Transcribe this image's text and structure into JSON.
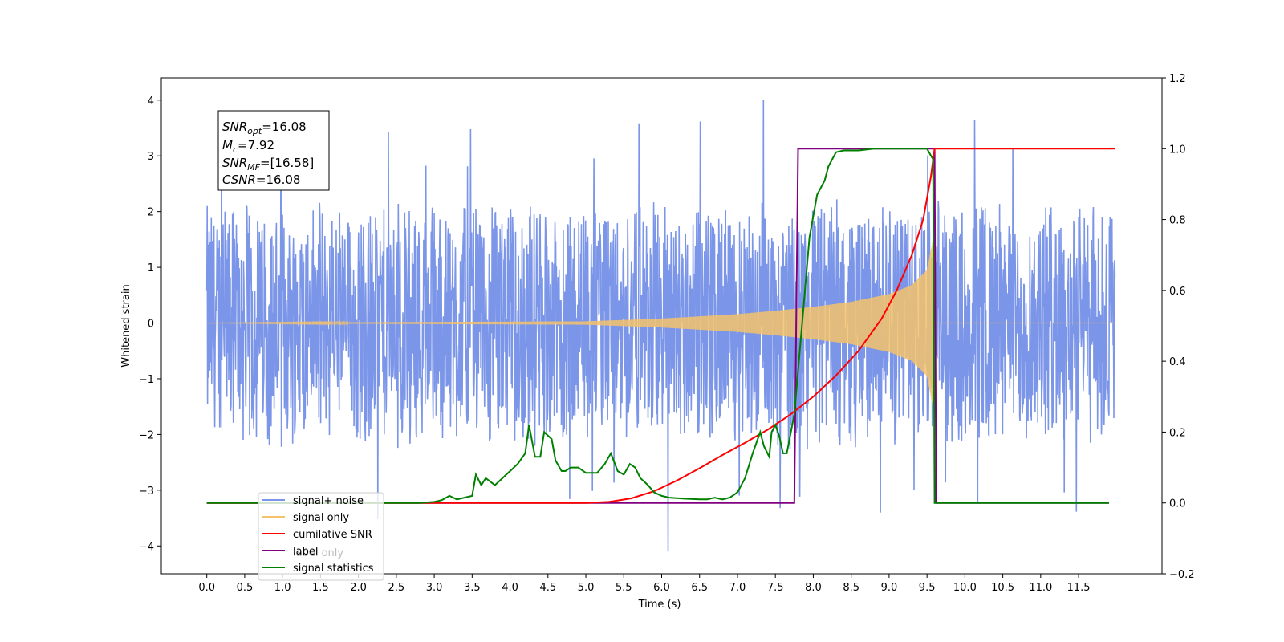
{
  "chart_data": {
    "type": "line",
    "xlabel": "Time (s)",
    "ylabel": "Whitened strain",
    "xlim": [
      -0.6,
      12.6
    ],
    "ylim": [
      -4.5,
      4.4
    ],
    "y2lim": [
      -0.2,
      1.2
    ],
    "x_ticks": [
      0.0,
      0.5,
      1.0,
      1.5,
      2.0,
      2.5,
      3.0,
      3.5,
      4.0,
      4.5,
      5.0,
      5.5,
      6.0,
      6.5,
      7.0,
      7.5,
      8.0,
      8.5,
      9.0,
      9.5,
      10.0,
      10.5,
      11.0,
      11.5
    ],
    "x_tick_labels": [
      "0.0",
      "0.5",
      "1.0",
      "1.5",
      "2.0",
      "2.5",
      "3.0",
      "3.5",
      "4.0",
      "4.5",
      "5.0",
      "5.5",
      "6.0",
      "6.5",
      "7.0",
      "7.5",
      "8.0",
      "8.5",
      "9.0",
      "9.5",
      "10.0",
      "10.5",
      "11.0",
      "11.5"
    ],
    "y_ticks": [
      -4,
      -3,
      -2,
      -1,
      0,
      1,
      2,
      3,
      4
    ],
    "y_tick_labels": [
      "−4",
      "−3",
      "−2",
      "−1",
      "0",
      "1",
      "2",
      "3",
      "4"
    ],
    "y2_ticks": [
      -0.2,
      0.0,
      0.2,
      0.4,
      0.6,
      0.8,
      1.0,
      1.2
    ],
    "y2_tick_labels": [
      "−0.2",
      "0.0",
      "0.2",
      "0.4",
      "0.6",
      "0.8",
      "1.0",
      "1.2"
    ],
    "grid": false,
    "legend_position": "bottom-left",
    "annotation": {
      "lines": [
        {
          "var": "SNR",
          "sub": "opt",
          "value": "=16.08"
        },
        {
          "var": "M",
          "sub": "c",
          "value": "=7.92"
        },
        {
          "var": "SNR",
          "sub": "MF",
          "value": "=[16.58]"
        },
        {
          "var": "CSNR",
          "sub": "",
          "value": "=16.08"
        }
      ]
    },
    "series": [
      {
        "name": "signal+ noise",
        "axis": "left",
        "color": "#7b95e8",
        "description": "whitened noise, amplitude roughly ±2.3 with spikes to ±4",
        "x_range": [
          0.0,
          11.98
        ],
        "envelope": 2.3,
        "peak_max": 4.0,
        "peak_min": -4.1
      },
      {
        "name": "signal only",
        "axis": "left",
        "color": "#f5c26b",
        "description": "chirp waveform",
        "envelope_points": [
          [
            0.0,
            0.0
          ],
          [
            5.0,
            0.03
          ],
          [
            6.0,
            0.08
          ],
          [
            7.0,
            0.16
          ],
          [
            7.5,
            0.22
          ],
          [
            8.0,
            0.29
          ],
          [
            8.5,
            0.38
          ],
          [
            9.0,
            0.52
          ],
          [
            9.3,
            0.68
          ],
          [
            9.5,
            0.95
          ],
          [
            9.58,
            1.5
          ],
          [
            9.6,
            0.0
          ],
          [
            11.98,
            0.0
          ]
        ]
      },
      {
        "name": "cumilative SNR",
        "axis": "right",
        "color": "#ff0000",
        "points": [
          [
            0.0,
            0.0
          ],
          [
            5.0,
            0.0
          ],
          [
            5.3,
            0.003
          ],
          [
            5.6,
            0.013
          ],
          [
            5.9,
            0.033
          ],
          [
            6.2,
            0.063
          ],
          [
            6.5,
            0.098
          ],
          [
            6.8,
            0.135
          ],
          [
            7.1,
            0.17
          ],
          [
            7.4,
            0.207
          ],
          [
            7.7,
            0.25
          ],
          [
            8.0,
            0.3
          ],
          [
            8.3,
            0.36
          ],
          [
            8.6,
            0.43
          ],
          [
            8.9,
            0.52
          ],
          [
            9.1,
            0.6
          ],
          [
            9.3,
            0.7
          ],
          [
            9.45,
            0.8
          ],
          [
            9.55,
            0.92
          ],
          [
            9.6,
            1.0
          ],
          [
            11.98,
            1.0
          ]
        ]
      },
      {
        "name": "label",
        "axis": "right",
        "color": "#800080",
        "points": [
          [
            0.0,
            0.0
          ],
          [
            7.75,
            0.0
          ],
          [
            7.8,
            1.0
          ],
          [
            9.6,
            1.0
          ],
          [
            9.62,
            0.0
          ],
          [
            11.9,
            0.0
          ]
        ]
      },
      {
        "name": "signal statistics",
        "axis": "right",
        "color": "#008000",
        "points": [
          [
            0.0,
            0.0
          ],
          [
            2.8,
            0.0
          ],
          [
            3.0,
            0.003
          ],
          [
            3.1,
            0.008
          ],
          [
            3.2,
            0.02
          ],
          [
            3.3,
            0.01
          ],
          [
            3.5,
            0.02
          ],
          [
            3.55,
            0.08
          ],
          [
            3.62,
            0.05
          ],
          [
            3.68,
            0.07
          ],
          [
            3.8,
            0.05
          ],
          [
            4.0,
            0.09
          ],
          [
            4.1,
            0.11
          ],
          [
            4.2,
            0.14
          ],
          [
            4.25,
            0.22
          ],
          [
            4.33,
            0.13
          ],
          [
            4.4,
            0.13
          ],
          [
            4.45,
            0.2
          ],
          [
            4.55,
            0.18
          ],
          [
            4.6,
            0.12
          ],
          [
            4.68,
            0.09
          ],
          [
            4.73,
            0.09
          ],
          [
            4.8,
            0.1
          ],
          [
            4.9,
            0.1
          ],
          [
            5.0,
            0.085
          ],
          [
            5.15,
            0.085
          ],
          [
            5.25,
            0.11
          ],
          [
            5.33,
            0.14
          ],
          [
            5.42,
            0.09
          ],
          [
            5.5,
            0.08
          ],
          [
            5.58,
            0.11
          ],
          [
            5.65,
            0.1
          ],
          [
            5.72,
            0.07
          ],
          [
            5.82,
            0.05
          ],
          [
            5.9,
            0.03
          ],
          [
            6.0,
            0.02
          ],
          [
            6.1,
            0.015
          ],
          [
            6.3,
            0.012
          ],
          [
            6.5,
            0.01
          ],
          [
            6.6,
            0.01
          ],
          [
            6.7,
            0.015
          ],
          [
            6.8,
            0.01
          ],
          [
            6.9,
            0.015
          ],
          [
            7.0,
            0.03
          ],
          [
            7.1,
            0.07
          ],
          [
            7.2,
            0.14
          ],
          [
            7.3,
            0.2
          ],
          [
            7.35,
            0.16
          ],
          [
            7.42,
            0.13
          ],
          [
            7.45,
            0.2
          ],
          [
            7.5,
            0.22
          ],
          [
            7.55,
            0.19
          ],
          [
            7.6,
            0.14
          ],
          [
            7.65,
            0.14
          ],
          [
            7.75,
            0.25
          ],
          [
            7.85,
            0.5
          ],
          [
            7.95,
            0.75
          ],
          [
            8.05,
            0.87
          ],
          [
            8.15,
            0.91
          ],
          [
            8.2,
            0.95
          ],
          [
            8.3,
            0.99
          ],
          [
            8.4,
            0.995
          ],
          [
            8.6,
            0.995
          ],
          [
            8.8,
            1.0
          ],
          [
            9.5,
            1.0
          ],
          [
            9.58,
            0.97
          ],
          [
            9.6,
            0.0
          ],
          [
            11.9,
            0.0
          ]
        ]
      }
    ],
    "legend_entries": [
      {
        "label": "signal+ noise",
        "color": "#7b95e8"
      },
      {
        "label": "signal only",
        "color": "#f5c26b"
      },
      {
        "label": "cumilative SNR",
        "color": "#ff0000"
      },
      {
        "label": "label",
        "color": "#800080"
      },
      {
        "label": "signal statistics",
        "color": "#008000"
      }
    ],
    "legend_hidden_text": [
      "label only"
    ]
  }
}
